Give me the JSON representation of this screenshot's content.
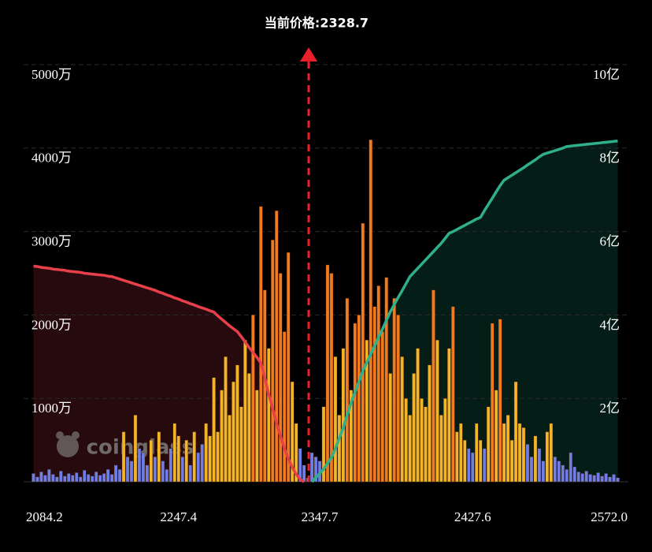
{
  "chart_data": {
    "type": "bar",
    "title": "当前价格:2328.7",
    "watermark": "coinglass",
    "categories": [
      "2084.2",
      null,
      null,
      null,
      null,
      null,
      null,
      null,
      null,
      null,
      null,
      null,
      null,
      null,
      null,
      null,
      null,
      null,
      null,
      null,
      null,
      null,
      null,
      null,
      null,
      null,
      null,
      null,
      null,
      null,
      null,
      null,
      null,
      null,
      null,
      null,
      null,
      "2247.4",
      null,
      null,
      null,
      null,
      null,
      null,
      null,
      null,
      null,
      null,
      null,
      null,
      null,
      null,
      null,
      null,
      null,
      null,
      null,
      null,
      null,
      null,
      null,
      null,
      null,
      null,
      null,
      null,
      null,
      null,
      null,
      null,
      null,
      null,
      null,
      "2347.7",
      null,
      null,
      null,
      null,
      null,
      null,
      null,
      null,
      null,
      null,
      null,
      null,
      null,
      null,
      null,
      null,
      null,
      null,
      null,
      null,
      null,
      null,
      null,
      null,
      null,
      null,
      null,
      null,
      null,
      null,
      null,
      null,
      null,
      null,
      null,
      null,
      null,
      null,
      "2427.6",
      null,
      null,
      null,
      null,
      null,
      null,
      null,
      null,
      null,
      null,
      null,
      null,
      null,
      null,
      null,
      null,
      null,
      null,
      null,
      null,
      null,
      null,
      null,
      null,
      null,
      null,
      null,
      null,
      null,
      null,
      null,
      null,
      null,
      null,
      null,
      null,
      "2572.0"
    ],
    "series": [
      {
        "type": "bar",
        "colors": [
          "#6f7ee6",
          "#f2b52a",
          "#f07a1f"
        ],
        "values": [
          100,
          60,
          120,
          80,
          150,
          90,
          60,
          130,
          70,
          100,
          80,
          110,
          60,
          140,
          90,
          70,
          120,
          80,
          100,
          150,
          90,
          200,
          150,
          600,
          300,
          250,
          800,
          400,
          350,
          200,
          500,
          300,
          600,
          250,
          150,
          400,
          700,
          550,
          300,
          500,
          200,
          600,
          350,
          450,
          700,
          550,
          1250,
          600,
          1100,
          1500,
          800,
          1200,
          1400,
          900,
          1700,
          1300,
          2000,
          1100,
          3300,
          2300,
          1600,
          2900,
          3250,
          2500,
          1800,
          2750,
          1200,
          700,
          400,
          200,
          50,
          350,
          300,
          250,
          900,
          2600,
          2500,
          1500,
          800,
          1600,
          2200,
          1100,
          1900,
          2000,
          3100,
          1700,
          4100,
          2100,
          2350,
          1800,
          2450,
          1300,
          2200,
          2000,
          1500,
          1000,
          800,
          1300,
          1600,
          1000,
          900,
          1400,
          2300,
          1700,
          800,
          1000,
          1600,
          2100,
          600,
          700,
          500,
          400,
          350,
          700,
          500,
          400,
          900,
          1900,
          1100,
          1950,
          700,
          800,
          500,
          1200,
          700,
          650,
          450,
          300,
          550,
          400,
          250,
          600,
          700,
          300,
          250,
          200,
          150,
          350,
          180,
          120,
          100,
          130,
          90,
          80,
          110,
          70,
          100,
          60,
          90,
          50
        ]
      },
      {
        "type": "line",
        "axis": "y2",
        "color": "#e8404a",
        "fill": "#2a0b0e",
        "values": [
          5.17,
          5.16,
          5.14,
          5.13,
          5.12,
          5.1,
          5.09,
          5.08,
          5.07,
          5.05,
          5.04,
          5.03,
          5.02,
          5.0,
          4.99,
          4.98,
          4.97,
          4.96,
          4.95,
          4.93,
          4.92,
          4.89,
          4.86,
          4.83,
          4.8,
          4.77,
          4.74,
          4.71,
          4.68,
          4.65,
          4.62,
          4.59,
          4.55,
          4.52,
          4.48,
          4.45,
          4.41,
          4.38,
          4.34,
          4.31,
          4.27,
          4.24,
          4.2,
          4.17,
          4.14,
          4.1,
          4.07,
          3.98,
          3.9,
          3.82,
          3.74,
          3.67,
          3.6,
          3.48,
          3.35,
          3.22,
          3.1,
          2.98,
          2.85,
          2.5,
          2.1,
          1.75,
          1.4,
          1.1,
          0.8,
          0.55,
          0.35,
          0.18,
          0.06,
          0,
          null,
          null,
          null,
          null,
          null,
          null,
          null,
          null,
          null,
          null,
          null,
          null,
          null,
          null,
          null,
          null,
          null,
          null,
          null,
          null,
          null,
          null,
          null,
          null,
          null,
          null,
          null,
          null,
          null,
          null,
          null,
          null,
          null,
          null,
          null,
          null,
          null,
          null,
          null,
          null,
          null,
          null,
          null,
          null,
          null,
          null,
          null,
          null,
          null,
          null,
          null,
          null,
          null,
          null,
          null,
          null,
          null,
          null,
          null,
          null,
          null,
          null,
          null,
          null,
          null,
          null,
          null,
          null,
          null,
          null,
          null,
          null,
          null,
          null,
          null,
          null,
          null,
          null,
          null,
          null
        ]
      },
      {
        "type": "line",
        "axis": "y2",
        "color": "#2fb08a",
        "fill": "#06201a",
        "values": [
          null,
          null,
          null,
          null,
          null,
          null,
          null,
          null,
          null,
          null,
          null,
          null,
          null,
          null,
          null,
          null,
          null,
          null,
          null,
          null,
          null,
          null,
          null,
          null,
          null,
          null,
          null,
          null,
          null,
          null,
          null,
          null,
          null,
          null,
          null,
          null,
          null,
          null,
          null,
          null,
          null,
          null,
          null,
          null,
          null,
          null,
          null,
          null,
          null,
          null,
          null,
          null,
          null,
          null,
          null,
          null,
          null,
          null,
          null,
          null,
          null,
          null,
          null,
          null,
          null,
          null,
          null,
          null,
          null,
          null,
          null,
          0,
          0.1,
          0.2,
          0.3,
          0.45,
          0.58,
          0.8,
          1.05,
          1.3,
          1.6,
          1.9,
          2.15,
          2.4,
          2.66,
          2.86,
          3.06,
          3.26,
          3.46,
          3.66,
          3.87,
          4.08,
          4.25,
          4.42,
          4.58,
          4.75,
          4.92,
          5.02,
          5.12,
          5.22,
          5.32,
          5.42,
          5.52,
          5.62,
          5.72,
          5.84,
          5.96,
          6.0,
          6.05,
          6.1,
          6.15,
          6.2,
          6.25,
          6.3,
          6.34,
          6.5,
          6.65,
          6.8,
          6.95,
          7.1,
          7.23,
          7.29,
          7.35,
          7.41,
          7.47,
          7.53,
          7.6,
          7.66,
          7.72,
          7.79,
          7.85,
          7.88,
          7.91,
          7.94,
          7.97,
          8.0,
          8.04,
          8.05,
          8.06,
          8.07,
          8.08,
          8.09,
          8.1,
          8.11,
          8.12,
          8.13,
          8.14,
          8.15,
          8.16,
          8.17
        ]
      }
    ],
    "ylim": [
      0,
      5000
    ],
    "yticks": [
      {
        "value": 1000,
        "label": "1000万"
      },
      {
        "value": 2000,
        "label": "2000万"
      },
      {
        "value": 3000,
        "label": "3000万"
      },
      {
        "value": 4000,
        "label": "4000万"
      },
      {
        "value": 5000,
        "label": "5000万"
      }
    ],
    "y2lim": [
      0,
      10
    ],
    "y2ticks": [
      {
        "value": 2,
        "label": "2亿"
      },
      {
        "value": 4,
        "label": "4亿"
      },
      {
        "value": 6,
        "label": "6亿"
      },
      {
        "value": 8,
        "label": "8亿"
      },
      {
        "value": 10,
        "label": "10亿"
      }
    ],
    "grid": true
  }
}
